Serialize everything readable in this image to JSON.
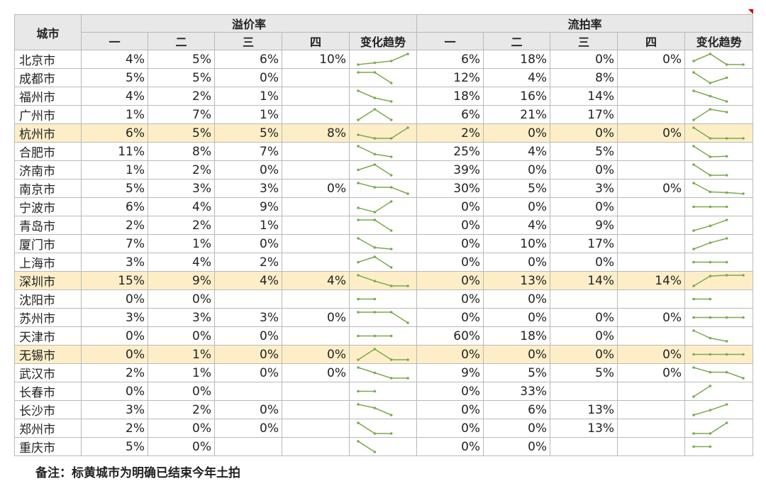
{
  "header": {
    "city": "城市",
    "premium_group": "溢价率",
    "failed_group": "流拍率",
    "quarters": [
      "一",
      "二",
      "三",
      "四"
    ],
    "trend": "变化趋势"
  },
  "rows": [
    {
      "city": "北京市",
      "premium": [
        "4%",
        "5%",
        "6%",
        "10%"
      ],
      "failed": [
        "6%",
        "18%",
        "0%",
        "0%"
      ],
      "highlight": false
    },
    {
      "city": "成都市",
      "premium": [
        "5%",
        "5%",
        "0%",
        ""
      ],
      "failed": [
        "12%",
        "4%",
        "8%",
        ""
      ],
      "highlight": false
    },
    {
      "city": "福州市",
      "premium": [
        "4%",
        "2%",
        "1%",
        ""
      ],
      "failed": [
        "18%",
        "16%",
        "14%",
        ""
      ],
      "highlight": false
    },
    {
      "city": "广州市",
      "premium": [
        "1%",
        "7%",
        "1%",
        ""
      ],
      "failed": [
        "6%",
        "21%",
        "17%",
        ""
      ],
      "highlight": false
    },
    {
      "city": "杭州市",
      "premium": [
        "6%",
        "5%",
        "5%",
        "8%"
      ],
      "failed": [
        "2%",
        "0%",
        "0%",
        "0%"
      ],
      "highlight": true
    },
    {
      "city": "合肥市",
      "premium": [
        "11%",
        "8%",
        "7%",
        ""
      ],
      "failed": [
        "25%",
        "4%",
        "5%",
        ""
      ],
      "highlight": false
    },
    {
      "city": "济南市",
      "premium": [
        "1%",
        "2%",
        "0%",
        ""
      ],
      "failed": [
        "39%",
        "0%",
        "0%",
        ""
      ],
      "highlight": false
    },
    {
      "city": "南京市",
      "premium": [
        "5%",
        "3%",
        "3%",
        "0%"
      ],
      "failed": [
        "30%",
        "5%",
        "3%",
        "0%"
      ],
      "highlight": false
    },
    {
      "city": "宁波市",
      "premium": [
        "6%",
        "4%",
        "9%",
        ""
      ],
      "failed": [
        "0%",
        "0%",
        "0%",
        ""
      ],
      "highlight": false
    },
    {
      "city": "青岛市",
      "premium": [
        "2%",
        "2%",
        "1%",
        ""
      ],
      "failed": [
        "0%",
        "4%",
        "9%",
        ""
      ],
      "highlight": false
    },
    {
      "city": "厦门市",
      "premium": [
        "7%",
        "1%",
        "0%",
        ""
      ],
      "failed": [
        "0%",
        "10%",
        "17%",
        ""
      ],
      "highlight": false
    },
    {
      "city": "上海市",
      "premium": [
        "3%",
        "4%",
        "2%",
        ""
      ],
      "failed": [
        "0%",
        "0%",
        "0%",
        ""
      ],
      "highlight": false
    },
    {
      "city": "深圳市",
      "premium": [
        "15%",
        "9%",
        "4%",
        "4%"
      ],
      "failed": [
        "0%",
        "13%",
        "14%",
        "14%"
      ],
      "highlight": true
    },
    {
      "city": "沈阳市",
      "premium": [
        "0%",
        "0%",
        "",
        ""
      ],
      "failed": [
        "0%",
        "0%",
        "",
        ""
      ],
      "highlight": false
    },
    {
      "city": "苏州市",
      "premium": [
        "3%",
        "3%",
        "3%",
        "0%"
      ],
      "failed": [
        "0%",
        "0%",
        "0%",
        "0%"
      ],
      "highlight": false
    },
    {
      "city": "天津市",
      "premium": [
        "0%",
        "0%",
        "0%",
        ""
      ],
      "failed": [
        "60%",
        "18%",
        "0%",
        ""
      ],
      "highlight": false
    },
    {
      "city": "无锡市",
      "premium": [
        "0%",
        "1%",
        "0%",
        "0%"
      ],
      "failed": [
        "0%",
        "0%",
        "0%",
        "0%"
      ],
      "highlight": true
    },
    {
      "city": "武汉市",
      "premium": [
        "2%",
        "1%",
        "0%",
        "0%"
      ],
      "failed": [
        "9%",
        "5%",
        "5%",
        "0%"
      ],
      "highlight": false
    },
    {
      "city": "长春市",
      "premium": [
        "0%",
        "0%",
        "",
        ""
      ],
      "failed": [
        "0%",
        "33%",
        "",
        ""
      ],
      "highlight": false
    },
    {
      "city": "长沙市",
      "premium": [
        "3%",
        "2%",
        "0%",
        ""
      ],
      "failed": [
        "0%",
        "6%",
        "13%",
        ""
      ],
      "highlight": false
    },
    {
      "city": "郑州市",
      "premium": [
        "2%",
        "0%",
        "0%",
        ""
      ],
      "failed": [
        "0%",
        "0%",
        "13%",
        ""
      ],
      "highlight": false
    },
    {
      "city": "重庆市",
      "premium": [
        "5%",
        "0%",
        "",
        ""
      ],
      "failed": [
        "0%",
        "0%",
        "",
        ""
      ],
      "highlight": false
    }
  ],
  "note": "备注：标黄城市为明确已结束今年土拍",
  "colors": {
    "sparkline": "#7aaa4e",
    "highlight": "#fdeec8",
    "header_bg": "#e8e8e8",
    "corner_mark": "#d00000"
  }
}
